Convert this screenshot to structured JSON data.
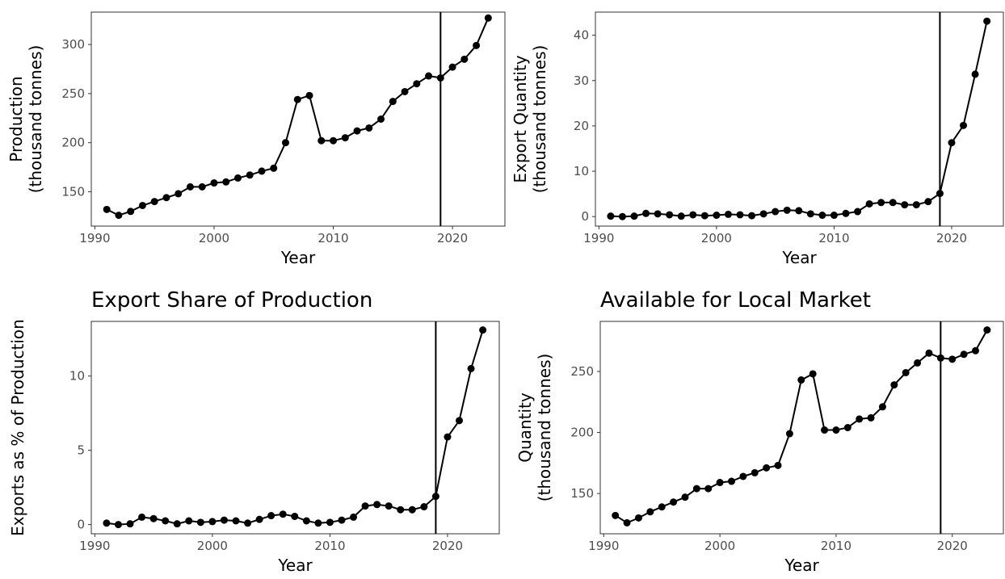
{
  "chart_data": [
    {
      "id": "production",
      "type": "line",
      "title": "",
      "xlabel": "Year",
      "ylabel": [
        "Production",
        "(thousand tonnes)"
      ],
      "xlim": [
        1989.7,
        2024.4
      ],
      "ylim": [
        115,
        333
      ],
      "xticks": [
        1990,
        2000,
        2010,
        2020
      ],
      "yticks": [
        150,
        200,
        250,
        300
      ],
      "vline": 2019,
      "grid": false,
      "x": [
        1991,
        1992,
        1993,
        1994,
        1995,
        1996,
        1997,
        1998,
        1999,
        2000,
        2001,
        2002,
        2003,
        2004,
        2005,
        2006,
        2007,
        2008,
        2009,
        2010,
        2011,
        2012,
        2013,
        2014,
        2015,
        2016,
        2017,
        2018,
        2019,
        2020,
        2021,
        2022,
        2023
      ],
      "y": [
        132,
        126,
        130,
        136,
        140,
        144,
        148,
        155,
        155,
        159,
        160,
        164,
        167,
        171,
        174,
        200,
        244,
        248,
        202,
        202,
        205,
        212,
        215,
        224,
        242,
        252,
        260,
        268,
        266,
        277,
        285,
        299,
        327
      ]
    },
    {
      "id": "exports",
      "type": "line",
      "title": "",
      "xlabel": "Year",
      "ylabel": [
        "Export Quantity",
        "(thousand tonnes)"
      ],
      "xlim": [
        1989.7,
        2024.4
      ],
      "ylim": [
        -2.1,
        45.1
      ],
      "xticks": [
        1990,
        2000,
        2010,
        2020
      ],
      "yticks": [
        0,
        10,
        20,
        30,
        40
      ],
      "vline": 2019,
      "grid": false,
      "x": [
        1991,
        1992,
        1993,
        1994,
        1995,
        1996,
        1997,
        1998,
        1999,
        2000,
        2001,
        2002,
        2003,
        2004,
        2005,
        2006,
        2007,
        2008,
        2009,
        2010,
        2011,
        2012,
        2013,
        2014,
        2015,
        2016,
        2017,
        2018,
        2019,
        2020,
        2021,
        2022,
        2023
      ],
      "y": [
        0.1,
        0,
        0.1,
        0.7,
        0.6,
        0.4,
        0.1,
        0.4,
        0.2,
        0.3,
        0.5,
        0.4,
        0.2,
        0.6,
        1.1,
        1.4,
        1.3,
        0.6,
        0.3,
        0.3,
        0.7,
        1.1,
        2.8,
        3.1,
        3.1,
        2.6,
        2.6,
        3.3,
        5.1,
        16.3,
        20.1,
        31.4,
        43.1
      ]
    },
    {
      "id": "export_share",
      "type": "line",
      "title": "Export Share of Production",
      "xlabel": "Year",
      "ylabel": [
        "Exports as % of Production"
      ],
      "xlim": [
        1989.7,
        2024.4
      ],
      "ylim": [
        -0.62,
        13.68
      ],
      "xticks": [
        1990,
        2000,
        2010,
        2020
      ],
      "yticks": [
        0,
        5,
        10
      ],
      "vline": 2019,
      "grid": false,
      "x": [
        1991,
        1992,
        1993,
        1994,
        1995,
        1996,
        1997,
        1998,
        1999,
        2000,
        2001,
        2002,
        2003,
        2004,
        2005,
        2006,
        2007,
        2008,
        2009,
        2010,
        2011,
        2012,
        2013,
        2014,
        2015,
        2016,
        2017,
        2018,
        2019,
        2020,
        2021,
        2022,
        2023
      ],
      "y": [
        0.1,
        0,
        0.05,
        0.5,
        0.4,
        0.25,
        0.05,
        0.25,
        0.15,
        0.2,
        0.3,
        0.25,
        0.1,
        0.35,
        0.6,
        0.7,
        0.55,
        0.25,
        0.1,
        0.15,
        0.3,
        0.5,
        1.25,
        1.35,
        1.25,
        1.0,
        1.0,
        1.2,
        1.9,
        5.9,
        7.0,
        10.5,
        13.1
      ]
    },
    {
      "id": "local_market",
      "type": "line",
      "title": "Available for Local Market",
      "xlabel": "Year",
      "ylabel": [
        "Quantity",
        "(thousand tonnes)"
      ],
      "xlim": [
        1989.7,
        2024.4
      ],
      "ylim": [
        117,
        291
      ],
      "xticks": [
        1990,
        2000,
        2010,
        2020
      ],
      "yticks": [
        150,
        200,
        250
      ],
      "vline": 2019,
      "grid": false,
      "x": [
        1991,
        1992,
        1993,
        1994,
        1995,
        1996,
        1997,
        1998,
        1999,
        2000,
        2001,
        2002,
        2003,
        2004,
        2005,
        2006,
        2007,
        2008,
        2009,
        2010,
        2011,
        2012,
        2013,
        2014,
        2015,
        2016,
        2017,
        2018,
        2019,
        2020,
        2021,
        2022,
        2023
      ],
      "y": [
        132,
        126,
        130,
        135,
        139,
        143,
        147,
        154,
        154,
        159,
        160,
        164,
        167,
        171,
        173,
        199,
        243,
        248,
        202,
        202,
        204,
        211,
        212,
        221,
        239,
        249,
        257,
        265,
        261,
        260,
        264,
        267,
        284
      ]
    }
  ]
}
